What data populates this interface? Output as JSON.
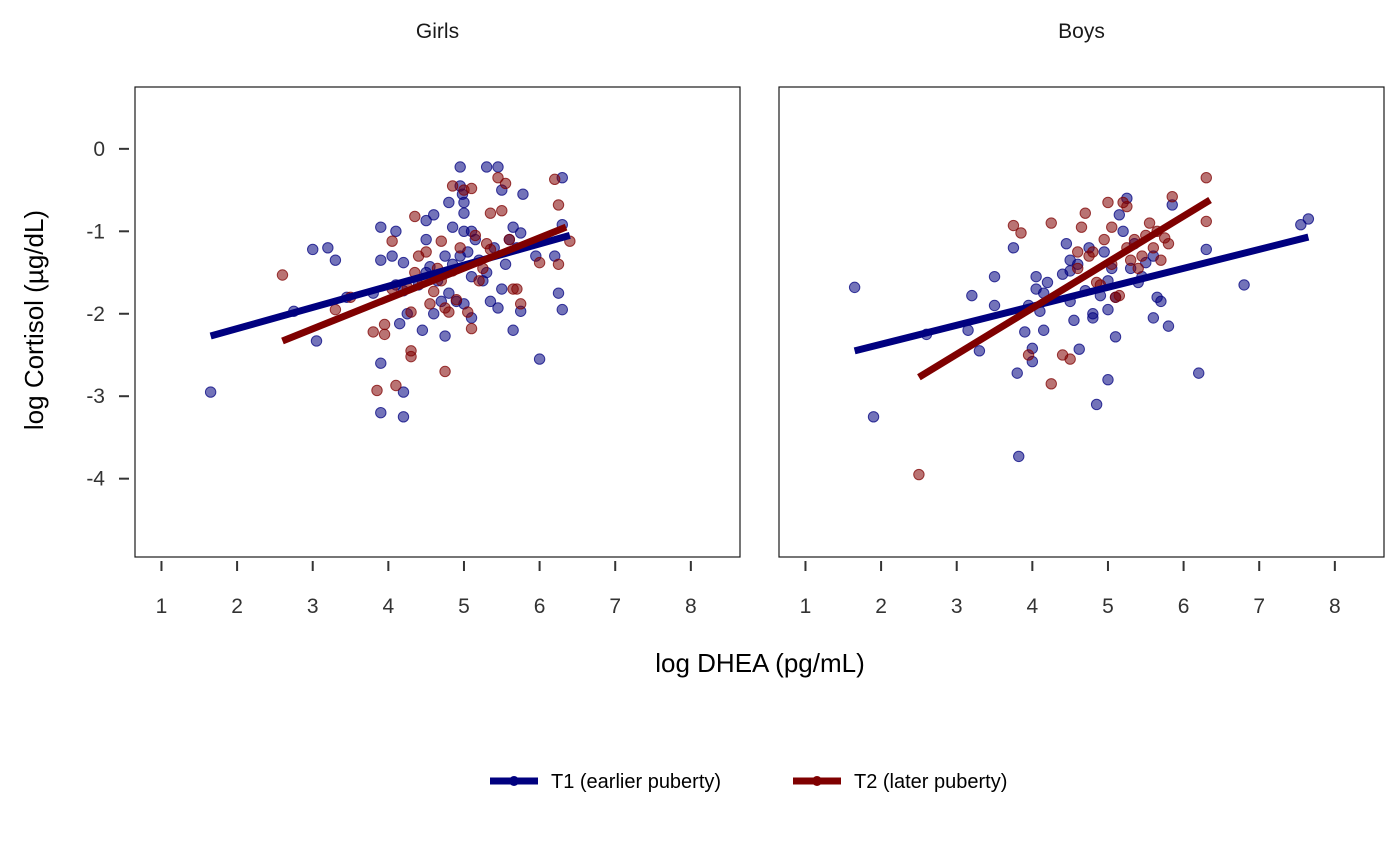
{
  "chart_data": {
    "type": "scatter",
    "xlabel": "log DHEA (pg/mL)",
    "ylabel": "log Cortisol (µg/dL)",
    "xlim": [
      0.65,
      8.65
    ],
    "ylim": [
      -4.95,
      0.75
    ],
    "x_ticks": [
      1,
      2,
      3,
      4,
      5,
      6,
      7,
      8
    ],
    "y_ticks": [
      0,
      -1,
      -2,
      -3,
      -4
    ],
    "y_tick_labels": [
      "0",
      "-1",
      "-2",
      "-3",
      "-4"
    ],
    "grid": false,
    "legend_position": "bottom",
    "legend": [
      {
        "label": "T1 (earlier puberty)",
        "color": "#00007f"
      },
      {
        "label": "T2 (later puberty)",
        "color": "#7f0000"
      }
    ],
    "panels": [
      {
        "title": "Girls",
        "series": [
          {
            "name": "T1 (earlier puberty)",
            "color": "#00007f",
            "fit_line": {
              "x": [
                1.65,
                6.4
              ],
              "y": [
                -2.27,
                -1.05
              ]
            },
            "points": [
              [
                1.65,
                -2.95
              ],
              [
                2.75,
                -1.97
              ],
              [
                3.0,
                -1.22
              ],
              [
                3.05,
                -2.33
              ],
              [
                3.2,
                -1.2
              ],
              [
                3.3,
                -1.35
              ],
              [
                3.45,
                -1.8
              ],
              [
                3.8,
                -1.75
              ],
              [
                3.9,
                -1.35
              ],
              [
                3.9,
                -0.95
              ],
              [
                3.9,
                -2.6
              ],
              [
                3.9,
                -3.2
              ],
              [
                4.05,
                -1.3
              ],
              [
                4.1,
                -1.0
              ],
              [
                4.1,
                -1.65
              ],
              [
                4.15,
                -2.12
              ],
              [
                4.2,
                -1.38
              ],
              [
                4.2,
                -1.72
              ],
              [
                4.2,
                -2.95
              ],
              [
                4.2,
                -3.25
              ],
              [
                4.25,
                -2.0
              ],
              [
                4.4,
                -1.65
              ],
              [
                4.45,
                -2.2
              ],
              [
                4.5,
                -1.1
              ],
              [
                4.5,
                -0.87
              ],
              [
                4.5,
                -1.5
              ],
              [
                4.55,
                -1.43
              ],
              [
                4.6,
                -2.0
              ],
              [
                4.6,
                -0.8
              ],
              [
                4.65,
                -1.6
              ],
              [
                4.7,
                -1.85
              ],
              [
                4.75,
                -1.3
              ],
              [
                4.75,
                -2.27
              ],
              [
                4.8,
                -0.65
              ],
              [
                4.8,
                -1.75
              ],
              [
                4.85,
                -1.4
              ],
              [
                4.85,
                -0.95
              ],
              [
                4.9,
                -1.85
              ],
              [
                4.95,
                -1.3
              ],
              [
                4.95,
                -0.45
              ],
              [
                4.95,
                -0.22
              ],
              [
                4.98,
                -0.55
              ],
              [
                5.0,
                -0.65
              ],
              [
                5.0,
                -0.78
              ],
              [
                5.0,
                -1.0
              ],
              [
                5.0,
                -1.88
              ],
              [
                5.05,
                -1.25
              ],
              [
                5.1,
                -1.0
              ],
              [
                5.1,
                -1.55
              ],
              [
                5.1,
                -2.05
              ],
              [
                5.15,
                -1.1
              ],
              [
                5.2,
                -1.35
              ],
              [
                5.25,
                -1.6
              ],
              [
                5.3,
                -0.22
              ],
              [
                5.3,
                -1.5
              ],
              [
                5.35,
                -1.85
              ],
              [
                5.4,
                -1.2
              ],
              [
                5.45,
                -0.22
              ],
              [
                5.45,
                -1.93
              ],
              [
                5.5,
                -0.5
              ],
              [
                5.5,
                -1.7
              ],
              [
                5.55,
                -1.4
              ],
              [
                5.6,
                -1.1
              ],
              [
                5.65,
                -2.2
              ],
              [
                5.65,
                -0.95
              ],
              [
                5.7,
                -1.2
              ],
              [
                5.75,
                -1.02
              ],
              [
                5.75,
                -1.97
              ],
              [
                5.78,
                -0.55
              ],
              [
                5.95,
                -1.3
              ],
              [
                6.0,
                -2.55
              ],
              [
                6.2,
                -1.3
              ],
              [
                6.25,
                -1.75
              ],
              [
                6.3,
                -0.35
              ],
              [
                6.3,
                -0.92
              ],
              [
                6.3,
                -1.95
              ]
            ]
          },
          {
            "name": "T2 (later puberty)",
            "color": "#7f0000",
            "fit_line": {
              "x": [
                2.6,
                6.35
              ],
              "y": [
                -2.33,
                -0.95
              ]
            },
            "points": [
              [
                2.6,
                -1.53
              ],
              [
                3.3,
                -1.95
              ],
              [
                3.5,
                -1.8
              ],
              [
                3.8,
                -2.22
              ],
              [
                3.85,
                -2.93
              ],
              [
                3.95,
                -2.13
              ],
              [
                3.95,
                -2.25
              ],
              [
                4.05,
                -1.12
              ],
              [
                4.05,
                -1.7
              ],
              [
                4.1,
                -2.87
              ],
              [
                4.25,
                -1.68
              ],
              [
                4.3,
                -2.45
              ],
              [
                4.3,
                -1.98
              ],
              [
                4.3,
                -2.52
              ],
              [
                4.35,
                -1.5
              ],
              [
                4.35,
                -0.82
              ],
              [
                4.4,
                -1.3
              ],
              [
                4.45,
                -1.6
              ],
              [
                4.5,
                -1.25
              ],
              [
                4.55,
                -1.88
              ],
              [
                4.6,
                -1.73
              ],
              [
                4.65,
                -1.45
              ],
              [
                4.7,
                -1.12
              ],
              [
                4.7,
                -1.6
              ],
              [
                4.75,
                -2.7
              ],
              [
                4.75,
                -1.93
              ],
              [
                4.8,
                -1.98
              ],
              [
                4.85,
                -1.48
              ],
              [
                4.85,
                -0.45
              ],
              [
                4.9,
                -1.83
              ],
              [
                4.95,
                -1.2
              ],
              [
                5.0,
                -0.5
              ],
              [
                5.05,
                -1.98
              ],
              [
                5.1,
                -2.18
              ],
              [
                5.1,
                -0.48
              ],
              [
                5.15,
                -1.05
              ],
              [
                5.2,
                -1.6
              ],
              [
                5.25,
                -1.45
              ],
              [
                5.3,
                -1.15
              ],
              [
                5.35,
                -0.78
              ],
              [
                5.35,
                -1.22
              ],
              [
                5.45,
                -0.35
              ],
              [
                5.5,
                -0.75
              ],
              [
                5.55,
                -0.42
              ],
              [
                5.6,
                -1.1
              ],
              [
                5.65,
                -1.7
              ],
              [
                5.7,
                -1.7
              ],
              [
                5.75,
                -1.88
              ],
              [
                6.0,
                -1.38
              ],
              [
                6.2,
                -0.37
              ],
              [
                6.25,
                -1.4
              ],
              [
                6.25,
                -0.68
              ],
              [
                6.4,
                -1.12
              ]
            ]
          }
        ]
      },
      {
        "title": "Boys",
        "series": [
          {
            "name": "T1 (earlier puberty)",
            "color": "#00007f",
            "fit_line": {
              "x": [
                1.65,
                7.65
              ],
              "y": [
                -2.45,
                -1.07
              ]
            },
            "points": [
              [
                1.65,
                -1.68
              ],
              [
                1.9,
                -3.25
              ],
              [
                2.6,
                -2.25
              ],
              [
                3.15,
                -2.2
              ],
              [
                3.2,
                -1.78
              ],
              [
                3.3,
                -2.45
              ],
              [
                3.5,
                -1.9
              ],
              [
                3.5,
                -1.55
              ],
              [
                3.75,
                -1.2
              ],
              [
                3.8,
                -2.72
              ],
              [
                3.82,
                -3.73
              ],
              [
                3.9,
                -2.22
              ],
              [
                3.95,
                -1.9
              ],
              [
                4.0,
                -2.42
              ],
              [
                4.0,
                -2.58
              ],
              [
                4.05,
                -1.7
              ],
              [
                4.05,
                -1.55
              ],
              [
                4.1,
                -1.97
              ],
              [
                4.15,
                -1.75
              ],
              [
                4.15,
                -2.2
              ],
              [
                4.2,
                -1.62
              ],
              [
                4.4,
                -1.52
              ],
              [
                4.45,
                -1.15
              ],
              [
                4.5,
                -1.35
              ],
              [
                4.5,
                -1.48
              ],
              [
                4.5,
                -1.85
              ],
              [
                4.55,
                -2.08
              ],
              [
                4.6,
                -1.4
              ],
              [
                4.62,
                -2.43
              ],
              [
                4.7,
                -1.72
              ],
              [
                4.75,
                -1.2
              ],
              [
                4.8,
                -2.0
              ],
              [
                4.8,
                -2.05
              ],
              [
                4.85,
                -3.1
              ],
              [
                4.9,
                -1.78
              ],
              [
                4.95,
                -1.25
              ],
              [
                5.0,
                -2.8
              ],
              [
                5.0,
                -1.95
              ],
              [
                5.0,
                -1.6
              ],
              [
                5.05,
                -1.45
              ],
              [
                5.1,
                -1.8
              ],
              [
                5.1,
                -2.28
              ],
              [
                5.15,
                -0.8
              ],
              [
                5.2,
                -1.0
              ],
              [
                5.25,
                -0.6
              ],
              [
                5.3,
                -1.45
              ],
              [
                5.35,
                -1.15
              ],
              [
                5.4,
                -1.62
              ],
              [
                5.45,
                -1.55
              ],
              [
                5.5,
                -1.38
              ],
              [
                5.6,
                -2.05
              ],
              [
                5.6,
                -1.3
              ],
              [
                5.65,
                -1.8
              ],
              [
                5.7,
                -1.85
              ],
              [
                5.8,
                -2.15
              ],
              [
                5.85,
                -0.68
              ],
              [
                6.2,
                -2.72
              ],
              [
                6.3,
                -1.22
              ],
              [
                6.8,
                -1.65
              ],
              [
                7.55,
                -0.92
              ],
              [
                7.65,
                -0.85
              ]
            ]
          },
          {
            "name": "T2 (later puberty)",
            "color": "#7f0000",
            "fit_line": {
              "x": [
                2.5,
                6.35
              ],
              "y": [
                -2.77,
                -0.62
              ]
            },
            "points": [
              [
                2.5,
                -3.95
              ],
              [
                3.75,
                -0.93
              ],
              [
                3.85,
                -1.02
              ],
              [
                3.95,
                -2.5
              ],
              [
                4.25,
                -0.9
              ],
              [
                4.25,
                -2.85
              ],
              [
                4.4,
                -2.5
              ],
              [
                4.5,
                -2.55
              ],
              [
                4.6,
                -1.45
              ],
              [
                4.6,
                -1.25
              ],
              [
                4.65,
                -0.95
              ],
              [
                4.7,
                -0.78
              ],
              [
                4.75,
                -1.3
              ],
              [
                4.8,
                -1.25
              ],
              [
                4.85,
                -1.62
              ],
              [
                4.9,
                -1.65
              ],
              [
                4.95,
                -1.1
              ],
              [
                5.0,
                -0.65
              ],
              [
                5.05,
                -0.95
              ],
              [
                5.05,
                -1.4
              ],
              [
                5.1,
                -1.8
              ],
              [
                5.15,
                -1.78
              ],
              [
                5.2,
                -0.65
              ],
              [
                5.25,
                -1.2
              ],
              [
                5.25,
                -0.7
              ],
              [
                5.3,
                -1.35
              ],
              [
                5.35,
                -1.1
              ],
              [
                5.4,
                -1.45
              ],
              [
                5.45,
                -1.3
              ],
              [
                5.5,
                -1.05
              ],
              [
                5.55,
                -0.9
              ],
              [
                5.6,
                -1.2
              ],
              [
                5.65,
                -1.0
              ],
              [
                5.7,
                -1.35
              ],
              [
                5.75,
                -1.08
              ],
              [
                5.8,
                -1.15
              ],
              [
                5.85,
                -0.58
              ],
              [
                6.3,
                -0.35
              ],
              [
                6.3,
                -0.88
              ]
            ]
          }
        ]
      }
    ]
  }
}
